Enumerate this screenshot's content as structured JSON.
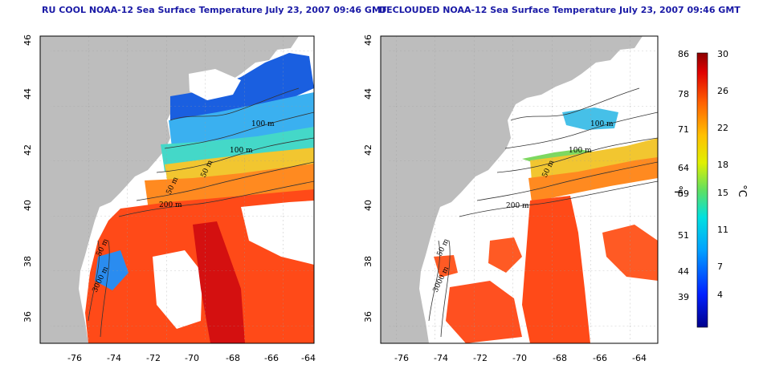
{
  "panels": [
    {
      "title": "RU COOL NOAA-12 Sea Surface Temperature July 23, 2007 09:46 GMT",
      "contour_labels": [
        "100 m",
        "100 m",
        "50 m",
        "50 m",
        "200 m",
        "50 m",
        "3000 m"
      ]
    },
    {
      "title": "DECLOUDED NOAA-12 Sea Surface Temperature July 23, 2007 09:46 GMT",
      "contour_labels": [
        "100 m",
        "100 m",
        "50 m",
        "200 m",
        "50 m",
        "3000 m"
      ]
    }
  ],
  "axes": {
    "lon_ticks": [
      "-76",
      "-74",
      "-72",
      "-70",
      "-68",
      "-66",
      "-64"
    ],
    "lat_ticks": [
      "36",
      "38",
      "40",
      "42",
      "44",
      "46"
    ]
  },
  "colorbar": {
    "fahrenheit_ticks": [
      "86",
      "78",
      "71",
      "64",
      "59",
      "51",
      "44",
      "39"
    ],
    "celsius_ticks": [
      "30",
      "26",
      "22",
      "18",
      "15",
      "11",
      "7",
      "4"
    ],
    "fahrenheit_unit": "°F",
    "celsius_unit": "°C"
  },
  "colors": {
    "land": "#bdbdbd",
    "title": "#1a1aa6",
    "scale_warm": "#8b0000",
    "scale_cold": "#00008b"
  }
}
